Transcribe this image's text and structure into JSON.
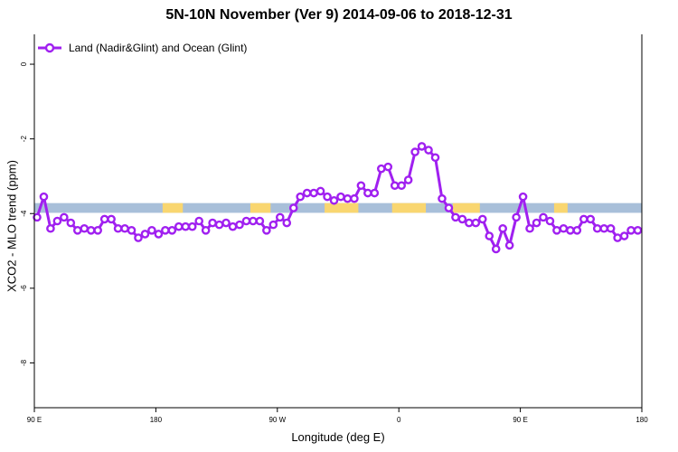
{
  "chart_data": {
    "type": "line",
    "title": "5N-10N November (Ver 9)   2014-09-06 to 2018-12-31",
    "xlabel": "Longitude (deg E)",
    "ylabel": "XCO2 - MLO trend (ppm)",
    "x_tick_labels": [
      "90 E",
      "180",
      "90 W",
      "0",
      "90 E",
      "180"
    ],
    "y_tick_labels": [
      "0",
      "-2",
      "-4",
      "-6",
      "-8"
    ],
    "ylim": [
      -9.2,
      0.8
    ],
    "legend": {
      "position": "top-left"
    },
    "grid": false,
    "colors": {
      "series": "#a020f0",
      "ocean_band": "#a8bfd9",
      "land_band": "#f9d670"
    },
    "series": [
      {
        "name": "Land (Nadir&Glint) and Ocean (Glint)",
        "x": [
          -268,
          -263,
          -258,
          -253,
          -248,
          -243,
          -238,
          -233,
          -228,
          -223,
          -218,
          -213,
          -208,
          -203,
          -198,
          -193,
          -188,
          -183,
          -178,
          -173,
          -168,
          -163,
          -158,
          -153,
          -148,
          -143,
          -138,
          -133,
          -128,
          -123,
          -118,
          -113,
          -108,
          -103,
          -98,
          -93,
          -88,
          -83,
          -78,
          -73,
          -68,
          -63,
          -58,
          -53,
          -48,
          -43,
          -38,
          -33,
          -28,
          -23,
          -18,
          -13,
          -8,
          -3,
          2,
          7,
          12,
          17,
          22,
          27,
          32,
          37,
          42,
          47,
          52,
          57,
          62,
          67,
          72,
          77,
          82,
          87,
          92,
          97,
          102,
          107,
          112,
          117,
          122,
          127,
          132,
          137,
          142,
          147,
          152,
          157,
          162,
          167,
          172,
          177
        ],
        "values": [
          -4.1,
          -3.55,
          -4.4,
          -4.2,
          -4.1,
          -4.25,
          -4.45,
          -4.4,
          -4.45,
          -4.45,
          -4.15,
          -4.15,
          -4.4,
          -4.4,
          -4.45,
          -4.65,
          -4.55,
          -4.45,
          -4.55,
          -4.45,
          -4.45,
          -4.35,
          -4.35,
          -4.35,
          -4.2,
          -4.45,
          -4.25,
          -4.3,
          -4.25,
          -4.35,
          -4.3,
          -4.2,
          -4.2,
          -4.2,
          -4.45,
          -4.3,
          -4.1,
          -4.25,
          -3.85,
          -3.55,
          -3.45,
          -3.45,
          -3.4,
          -3.55,
          -3.65,
          -3.55,
          -3.6,
          -3.6,
          -3.25,
          -3.45,
          -3.45,
          -2.8,
          -2.75,
          -3.25,
          -3.25,
          -3.1,
          -2.35,
          -2.2,
          -2.3,
          -2.5,
          -3.6,
          -3.85,
          -4.1,
          -4.15,
          -4.25,
          -4.25,
          -4.15,
          -4.6,
          -4.95,
          -4.4,
          -4.85,
          -4.1,
          -3.55,
          -4.4,
          -4.25,
          -4.1,
          -4.2,
          -4.45,
          -4.4,
          -4.45,
          -4.45,
          -4.15,
          -4.15,
          -4.4,
          -4.4,
          -4.4,
          -4.65,
          -4.6,
          -4.45,
          -4.45
        ]
      }
    ]
  }
}
